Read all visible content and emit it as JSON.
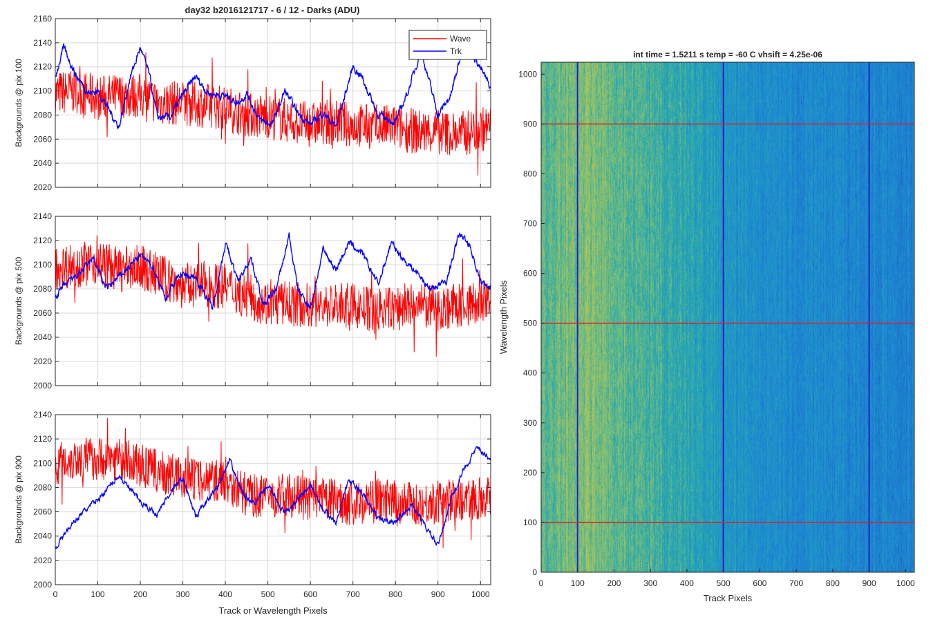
{
  "figure_title": "day32 b2016121717 - 6 / 12 - Darks (ADU)",
  "colors": {
    "wave": "#ff0000",
    "trk": "#0000ff",
    "grid": "#d9d9d9",
    "axis": "#262626",
    "heat_low": "#1f78d1",
    "heat_mid": "#2aa6b7",
    "heat_high": "#b8c656",
    "cursor_line_h": "#d62728",
    "cursor_line_v": "#1f1fcc"
  },
  "chart_data": [
    {
      "type": "line",
      "panel": "top-left",
      "title": "day32 b2016121717 - 6 / 12 - Darks (ADU)",
      "xlabel": "",
      "ylabel": "Backgrounds @ pix 100",
      "xlim": [
        0,
        1024
      ],
      "ylim": [
        2020,
        2160
      ],
      "xticks": [
        0,
        100,
        200,
        300,
        400,
        500,
        600,
        700,
        800,
        900,
        1000
      ],
      "xtick_labels": [
        "",
        "",
        "",
        "",
        "",
        "",
        "",
        "",
        "",
        "",
        ""
      ],
      "yticks": [
        2020,
        2040,
        2060,
        2080,
        2100,
        2120,
        2140,
        2160
      ],
      "grid": true,
      "legend": {
        "placement": "top-right",
        "entries": [
          "Wave",
          "Trk"
        ]
      },
      "series": [
        {
          "name": "Wave",
          "x": [
            0,
            50,
            100,
            150,
            200,
            250,
            300,
            350,
            400,
            450,
            500,
            550,
            600,
            650,
            700,
            750,
            800,
            850,
            900,
            950,
            1000,
            1024
          ],
          "values": [
            2098,
            2100,
            2094,
            2096,
            2096,
            2090,
            2090,
            2088,
            2086,
            2080,
            2079,
            2075,
            2072,
            2074,
            2072,
            2070,
            2070,
            2066,
            2066,
            2064,
            2068,
            2070
          ],
          "noise": 38
        },
        {
          "name": "Trk",
          "x": [
            0,
            20,
            50,
            80,
            100,
            130,
            150,
            175,
            200,
            220,
            240,
            270,
            300,
            330,
            360,
            400,
            430,
            450,
            480,
            510,
            540,
            570,
            600,
            630,
            660,
            700,
            720,
            760,
            800,
            830,
            860,
            900,
            930,
            960,
            990,
            1024
          ],
          "values": [
            2112,
            2136,
            2112,
            2098,
            2100,
            2082,
            2070,
            2110,
            2136,
            2115,
            2078,
            2078,
            2097,
            2112,
            2098,
            2096,
            2090,
            2098,
            2076,
            2072,
            2100,
            2082,
            2072,
            2082,
            2070,
            2120,
            2112,
            2080,
            2074,
            2100,
            2134,
            2080,
            2096,
            2138,
            2126,
            2102
          ],
          "noise": 12
        }
      ]
    },
    {
      "type": "line",
      "panel": "middle-left",
      "xlabel": "",
      "ylabel": "Backgrounds @ pix 500",
      "xlim": [
        0,
        1024
      ],
      "ylim": [
        2000,
        2140
      ],
      "xticks": [
        0,
        100,
        200,
        300,
        400,
        500,
        600,
        700,
        800,
        900,
        1000
      ],
      "xtick_labels": [
        "",
        "",
        "",
        "",
        "",
        "",
        "",
        "",
        "",
        "",
        ""
      ],
      "yticks": [
        2000,
        2020,
        2040,
        2060,
        2080,
        2100,
        2120,
        2140
      ],
      "grid": true,
      "series": [
        {
          "name": "Wave",
          "x": [
            0,
            50,
            100,
            150,
            200,
            250,
            300,
            350,
            400,
            450,
            500,
            550,
            600,
            650,
            700,
            750,
            800,
            850,
            900,
            950,
            1000,
            1024
          ],
          "values": [
            2098,
            2100,
            2102,
            2096,
            2098,
            2090,
            2082,
            2084,
            2082,
            2074,
            2068,
            2068,
            2066,
            2066,
            2066,
            2062,
            2064,
            2066,
            2064,
            2066,
            2068,
            2068
          ],
          "noise": 38
        },
        {
          "name": "Trk",
          "x": [
            0,
            20,
            60,
            90,
            120,
            150,
            200,
            230,
            260,
            290,
            330,
            370,
            400,
            430,
            460,
            490,
            520,
            550,
            570,
            600,
            630,
            660,
            690,
            720,
            760,
            790,
            820,
            850,
            880,
            920,
            950,
            975,
            1000,
            1024
          ],
          "values": [
            2074,
            2082,
            2094,
            2105,
            2080,
            2090,
            2108,
            2098,
            2072,
            2092,
            2090,
            2064,
            2118,
            2086,
            2106,
            2066,
            2080,
            2124,
            2080,
            2064,
            2112,
            2096,
            2118,
            2110,
            2084,
            2118,
            2104,
            2094,
            2080,
            2086,
            2126,
            2116,
            2086,
            2082
          ],
          "noise": 11
        }
      ]
    },
    {
      "type": "line",
      "panel": "bottom-left",
      "xlabel": "Track or Wavelength Pixels",
      "ylabel": "Backgrounds @ pix 900",
      "xlim": [
        0,
        1024
      ],
      "ylim": [
        2000,
        2140
      ],
      "xticks": [
        0,
        100,
        200,
        300,
        400,
        500,
        600,
        700,
        800,
        900,
        1000
      ],
      "xtick_labels": [
        "0",
        "100",
        "200",
        "300",
        "400",
        "500",
        "600",
        "700",
        "800",
        "900",
        "1000"
      ],
      "yticks": [
        2000,
        2020,
        2040,
        2060,
        2080,
        2100,
        2120,
        2140
      ],
      "grid": true,
      "series": [
        {
          "name": "Wave",
          "x": [
            0,
            50,
            100,
            150,
            200,
            250,
            300,
            350,
            400,
            450,
            500,
            550,
            600,
            650,
            700,
            750,
            800,
            850,
            900,
            950,
            1000,
            1024
          ],
          "values": [
            2100,
            2104,
            2104,
            2104,
            2098,
            2092,
            2088,
            2086,
            2086,
            2074,
            2072,
            2074,
            2070,
            2070,
            2066,
            2070,
            2068,
            2066,
            2068,
            2070,
            2072,
            2074
          ],
          "noise": 36
        },
        {
          "name": "Trk",
          "x": [
            0,
            30,
            60,
            100,
            150,
            200,
            240,
            270,
            300,
            330,
            360,
            390,
            410,
            440,
            470,
            500,
            540,
            570,
            600,
            630,
            660,
            690,
            720,
            760,
            800,
            840,
            870,
            900,
            930,
            960,
            990,
            1024
          ],
          "values": [
            2030,
            2046,
            2058,
            2070,
            2090,
            2068,
            2058,
            2076,
            2088,
            2056,
            2070,
            2086,
            2102,
            2076,
            2066,
            2082,
            2058,
            2070,
            2082,
            2062,
            2052,
            2086,
            2076,
            2054,
            2052,
            2066,
            2048,
            2032,
            2070,
            2094,
            2112,
            2104
          ],
          "noise": 9
        }
      ]
    },
    {
      "type": "heatmap",
      "panel": "right",
      "title": "int time = 1.5211 s    temp = -60 C    vhsift = 4.25e-06",
      "xlabel": "Track Pixels",
      "ylabel": "Wavelength Pixels",
      "xlim": [
        0,
        1024
      ],
      "ylim": [
        0,
        1024
      ],
      "xticks": [
        0,
        100,
        200,
        300,
        400,
        500,
        600,
        700,
        800,
        900,
        1000
      ],
      "yticks": [
        0,
        100,
        200,
        300,
        400,
        500,
        600,
        700,
        800,
        900,
        1000
      ],
      "colormap": "parula",
      "column_profile_x": [
        0,
        50,
        100,
        150,
        200,
        300,
        400,
        500,
        600,
        700,
        800,
        900,
        1000,
        1024
      ],
      "column_profile": [
        0.72,
        0.78,
        0.8,
        0.82,
        0.74,
        0.66,
        0.58,
        0.45,
        0.38,
        0.34,
        0.32,
        0.3,
        0.28,
        0.28
      ],
      "markers": {
        "horizontal_lines": [
          100,
          500,
          900
        ],
        "vertical_lines": [
          100,
          500,
          900
        ]
      }
    }
  ]
}
